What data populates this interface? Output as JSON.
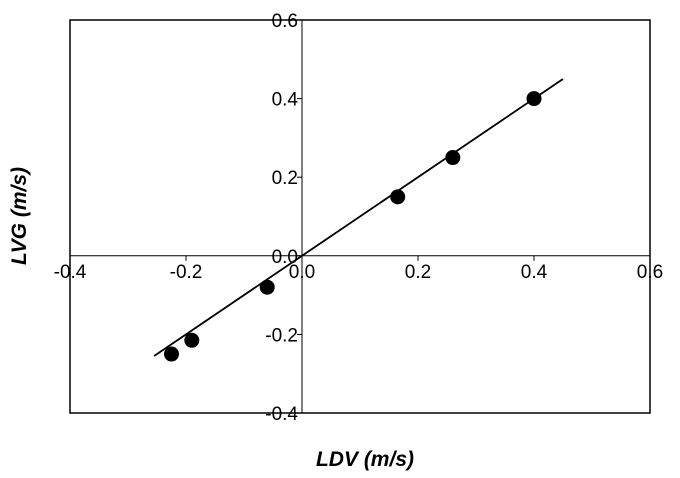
{
  "chart_data": {
    "type": "scatter",
    "title": "",
    "xlabel": "LDV (m/s)",
    "ylabel": "LVG (m/s)",
    "xlim": [
      -0.4,
      0.6
    ],
    "ylim": [
      -0.4,
      0.6
    ],
    "x_ticks": [
      "-0.4",
      "-0.2",
      "0.0",
      "0.2",
      "0.4",
      "0.6"
    ],
    "y_ticks": [
      "0.6",
      "0.4",
      "0.2",
      "0.0",
      "-0.2",
      "-0.4"
    ],
    "grid": false,
    "legend": "none",
    "series": [
      {
        "points": [
          {
            "x": -0.225,
            "y": -0.25
          },
          {
            "x": -0.19,
            "y": -0.215
          },
          {
            "x": -0.06,
            "y": -0.08
          },
          {
            "x": 0.165,
            "y": 0.15
          },
          {
            "x": 0.26,
            "y": 0.25
          },
          {
            "x": 0.4,
            "y": 0.4
          }
        ],
        "color": "#000000"
      }
    ],
    "trendline": {
      "x": [
        -0.255,
        0.45
      ],
      "y": [
        -0.255,
        0.45
      ],
      "color": "#000000"
    }
  }
}
